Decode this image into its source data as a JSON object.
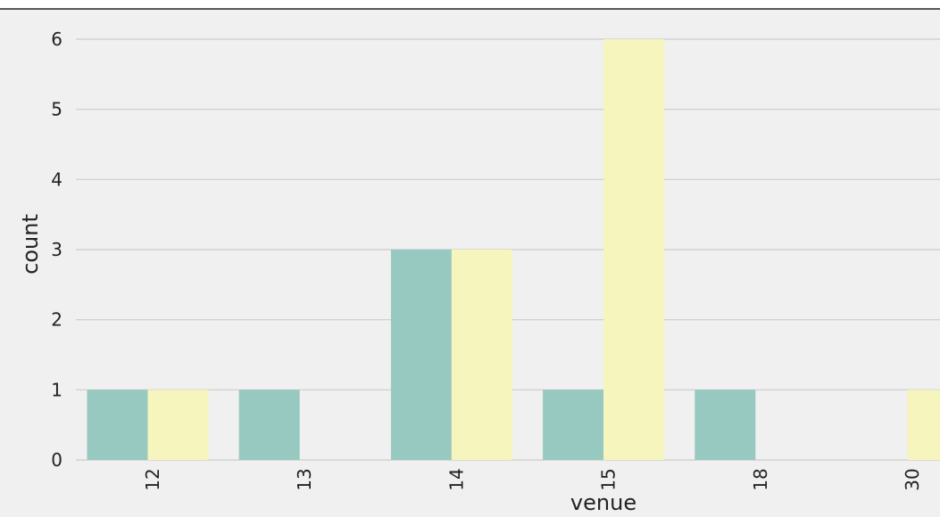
{
  "chart_data": {
    "type": "bar",
    "xlabel": "venue",
    "ylabel": "count",
    "categories": [
      "12",
      "13",
      "14",
      "15",
      "18",
      "30"
    ],
    "series": [
      {
        "values": [
          1,
          1,
          3,
          1,
          1,
          0
        ],
        "color": "#97c9c1"
      },
      {
        "values": [
          1,
          0,
          3,
          6,
          0,
          1
        ],
        "color": "#f5f5bd"
      }
    ],
    "ylim": [
      0,
      6
    ],
    "yticks": [
      0,
      1,
      2,
      3,
      4,
      5,
      6
    ],
    "grid": true,
    "background_color": "#f0f0f0",
    "grid_color": "#cbcbcb"
  }
}
